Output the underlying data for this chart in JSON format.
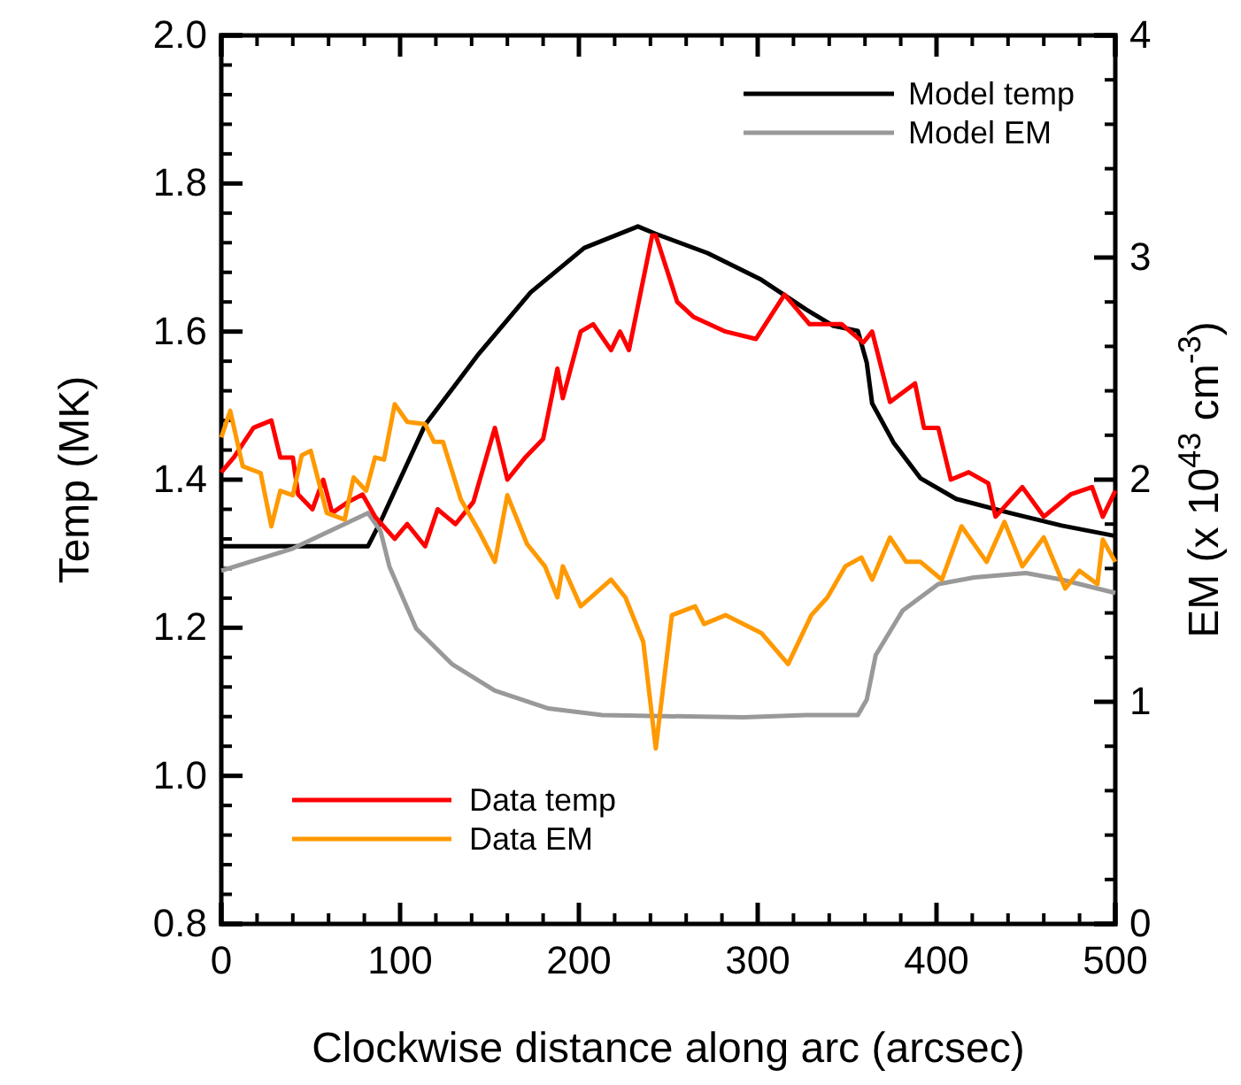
{
  "chart_data": {
    "type": "line",
    "xlabel": "Clockwise distance along arc (arcsec)",
    "ylabel": "Temp (MK)",
    "y2label": "EM (x 10$^{43}$ cm$^{-3}$)",
    "xlim": [
      0,
      500
    ],
    "xticks": [
      0,
      100,
      200,
      300,
      400,
      500
    ],
    "ylim": [
      0.8,
      2.0
    ],
    "yticks": [
      {
        "value": 0.8,
        "label": "0.8"
      },
      {
        "value": 1.0,
        "label": "1.0"
      },
      {
        "value": 1.2,
        "label": "1.2"
      },
      {
        "value": 1.4,
        "label": "1.4"
      },
      {
        "value": 1.6,
        "label": "1.6"
      },
      {
        "value": 1.8,
        "label": "1.8"
      },
      {
        "value": 2.0,
        "label": "2.0"
      }
    ],
    "y2lim": [
      0,
      4
    ],
    "y2ticks": [
      0,
      1,
      2,
      3,
      4
    ],
    "legend": "top right",
    "series": [
      {
        "name": "Model temp",
        "color": "#000000",
        "x": [
          0,
          82,
          89,
          114,
          144,
          173,
          203,
          233,
          243,
          272,
          302,
          327,
          342,
          356,
          361,
          364,
          376,
          391,
          411,
          441,
          470,
          500
        ],
        "values": [
          1.31,
          1.31,
          1.343,
          1.474,
          1.57,
          1.653,
          1.713,
          1.742,
          1.732,
          1.706,
          1.67,
          1.63,
          1.608,
          1.601,
          1.558,
          1.503,
          1.45,
          1.402,
          1.374,
          1.355,
          1.338,
          1.324
        ]
      },
      {
        "name": "Model EM",
        "color": "#999999",
        "axis": "y2",
        "x": [
          0,
          40,
          82,
          89,
          94,
          109,
          129,
          153,
          183,
          213,
          292,
          327,
          356,
          361,
          366,
          381,
          401,
          421,
          450,
          470,
          500
        ],
        "values": [
          1.59,
          1.69,
          1.85,
          1.77,
          1.61,
          1.33,
          1.17,
          1.05,
          0.97,
          0.94,
          0.93,
          0.94,
          0.94,
          1.01,
          1.21,
          1.41,
          1.53,
          1.56,
          1.58,
          1.55,
          1.49
        ]
      },
      {
        "name": "Data temp",
        "color": "#ff0000",
        "x": [
          0,
          7,
          18,
          28,
          33,
          40,
          43,
          51,
          57,
          62,
          71,
          79,
          86,
          97,
          104,
          114,
          121,
          131,
          141,
          153,
          160,
          170,
          180,
          188,
          191,
          201,
          208,
          218,
          223,
          228,
          241,
          243,
          255,
          264,
          282,
          299,
          315,
          329,
          347,
          359,
          364,
          374,
          388,
          393,
          401,
          408,
          418,
          429,
          433,
          448,
          460,
          475,
          487,
          493,
          500
        ],
        "values": [
          1.41,
          1.43,
          1.47,
          1.48,
          1.43,
          1.43,
          1.38,
          1.36,
          1.4,
          1.355,
          1.37,
          1.38,
          1.35,
          1.32,
          1.34,
          1.31,
          1.36,
          1.34,
          1.37,
          1.47,
          1.4,
          1.43,
          1.455,
          1.55,
          1.51,
          1.6,
          1.61,
          1.575,
          1.6,
          1.575,
          1.73,
          1.73,
          1.64,
          1.62,
          1.6,
          1.59,
          1.65,
          1.61,
          1.61,
          1.585,
          1.6,
          1.505,
          1.53,
          1.47,
          1.47,
          1.4,
          1.41,
          1.395,
          1.35,
          1.39,
          1.35,
          1.38,
          1.39,
          1.35,
          1.385
        ]
      },
      {
        "name": "Data EM",
        "color": "#ff9900",
        "axis": "y2",
        "x": [
          0,
          5,
          12,
          22,
          28,
          33,
          40,
          45,
          50,
          59,
          69,
          74,
          81,
          86,
          91,
          97,
          104,
          114,
          119,
          124,
          134,
          144,
          153,
          160,
          171,
          181,
          188,
          191,
          201,
          218,
          226,
          236,
          243,
          252,
          265,
          270,
          282,
          302,
          317,
          330,
          339,
          349,
          358,
          364,
          374,
          383,
          391,
          403,
          414,
          428,
          438,
          448,
          460,
          472,
          480,
          490,
          493,
          500
        ],
        "values": [
          2.19,
          2.31,
          2.06,
          2.03,
          1.79,
          1.95,
          1.93,
          2.11,
          2.13,
          1.85,
          1.82,
          2.01,
          1.95,
          2.1,
          2.09,
          2.34,
          2.26,
          2.25,
          2.17,
          2.17,
          1.91,
          1.77,
          1.63,
          1.93,
          1.71,
          1.61,
          1.47,
          1.61,
          1.43,
          1.55,
          1.47,
          1.27,
          0.79,
          1.39,
          1.43,
          1.35,
          1.39,
          1.31,
          1.17,
          1.39,
          1.47,
          1.61,
          1.65,
          1.55,
          1.74,
          1.63,
          1.63,
          1.55,
          1.79,
          1.63,
          1.81,
          1.61,
          1.74,
          1.51,
          1.59,
          1.53,
          1.73,
          1.63
        ]
      }
    ]
  }
}
